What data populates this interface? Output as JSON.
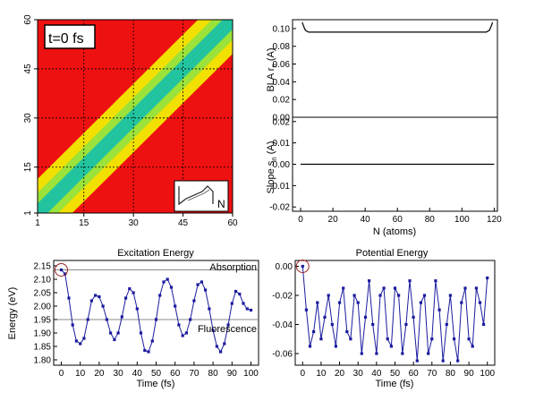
{
  "colors": {
    "heatmap_background": "#ee1111",
    "heatmap_band_outer": "#f2e000",
    "heatmap_band_mid": "#9be23a",
    "heatmap_band_core": "#22c4a0",
    "scatter_series": "#1b1b9e",
    "reference_lines": "#888888",
    "marker_circle": "#9a1f1f"
  },
  "chart_data": [
    {
      "type": "heatmap",
      "annotation": "t=0 fs",
      "inset_label": "N",
      "xlim": [
        1,
        60
      ],
      "ylim": [
        1,
        60
      ],
      "xticks": [
        "1",
        "15",
        "30",
        "45",
        "60"
      ],
      "yticks": [
        "1",
        "15",
        "30",
        "45",
        "60"
      ],
      "diagonal_band": {
        "from": [
          1,
          1
        ],
        "to": [
          60,
          60
        ],
        "half_width": 7
      },
      "grid": true
    },
    {
      "type": "line",
      "xlabel": "",
      "ylabel": "BLA r_n (A)",
      "ylabel_main": "BLA r",
      "ylabel_sub": "n",
      "ylabel_unit": " (A)",
      "xlim": [
        0,
        120
      ],
      "ylim": [
        0,
        0.11
      ],
      "yticks": [
        "0.00",
        "0.02",
        "0.04",
        "0.06",
        "0.08",
        "0.10"
      ],
      "series": [
        {
          "x": [
            1,
            2,
            3,
            5,
            10,
            30,
            60,
            90,
            110,
            115,
            117,
            118,
            119
          ],
          "y": [
            0.107,
            0.102,
            0.098,
            0.096,
            0.096,
            0.096,
            0.096,
            0.096,
            0.096,
            0.096,
            0.098,
            0.102,
            0.107
          ]
        }
      ]
    },
    {
      "type": "line",
      "xlabel": "N (atoms)",
      "ylabel": "Slope s_n (A)",
      "ylabel_main": "Slope s",
      "ylabel_sub": "n",
      "ylabel_unit": " (A)",
      "xlim": [
        -5,
        122
      ],
      "ylim": [
        -0.022,
        0.022
      ],
      "xticks": [
        "0",
        "20",
        "40",
        "60",
        "80",
        "100",
        "120"
      ],
      "yticks": [
        "0.02",
        "0.01",
        "0.00",
        "-0.01",
        "-0.02"
      ],
      "series": [
        {
          "x": [
            0,
            120
          ],
          "y": [
            0,
            0
          ]
        }
      ]
    },
    {
      "type": "scatter",
      "title": "Excitation Energy",
      "xlabel": "Time (fs)",
      "ylabel": "Energy (eV)",
      "xlim": [
        -4,
        104
      ],
      "ylim": [
        1.78,
        2.17
      ],
      "xticks": [
        "0",
        "10",
        "20",
        "30",
        "40",
        "50",
        "60",
        "70",
        "80",
        "90",
        "100"
      ],
      "yticks": [
        "2.15",
        "2.10",
        "2.05",
        "2.00",
        "1.95",
        "1.90",
        "1.85",
        "1.80"
      ],
      "reference_lines": [
        {
          "label": "Absorption",
          "y": 2.135
        },
        {
          "label": "Fluorescence",
          "y": 1.95
        }
      ],
      "circle_marker": {
        "x": 0,
        "y": 2.135
      },
      "series": [
        {
          "x": [
            0,
            2,
            4,
            6,
            8,
            10,
            12,
            14,
            16,
            18,
            20,
            22,
            24,
            26,
            28,
            30,
            32,
            34,
            36,
            38,
            40,
            42,
            44,
            46,
            48,
            50,
            52,
            54,
            56,
            58,
            60,
            62,
            64,
            66,
            68,
            70,
            72,
            74,
            76,
            78,
            80,
            82,
            84,
            86,
            88,
            90,
            92,
            94,
            96,
            98,
            100
          ],
          "y": [
            2.135,
            2.12,
            2.03,
            1.93,
            1.87,
            1.86,
            1.88,
            1.95,
            2.02,
            2.04,
            2.035,
            2.0,
            1.95,
            1.9,
            1.875,
            1.9,
            1.96,
            2.03,
            2.065,
            2.05,
            1.99,
            1.9,
            1.835,
            1.83,
            1.87,
            1.95,
            2.04,
            2.09,
            2.1,
            2.07,
            2.0,
            1.93,
            1.89,
            1.9,
            1.95,
            2.02,
            2.08,
            2.09,
            2.06,
            1.99,
            1.91,
            1.85,
            1.83,
            1.86,
            1.93,
            2.01,
            2.055,
            2.045,
            2.01,
            1.99,
            1.985
          ]
        }
      ]
    },
    {
      "type": "scatter",
      "title": "Potential Energy",
      "xlabel": "Time (fs)",
      "ylabel": "",
      "xlim": [
        -4,
        104
      ],
      "ylim": [
        -0.068,
        0.004
      ],
      "xticks": [
        "0",
        "10",
        "20",
        "30",
        "40",
        "50",
        "60",
        "70",
        "80",
        "90",
        "100"
      ],
      "yticks": [
        "0.00",
        "-0.02",
        "-0.04",
        "-0.06"
      ],
      "circle_marker": {
        "x": 0,
        "y": 0.0
      },
      "series": [
        {
          "x": [
            0,
            2,
            4,
            6,
            8,
            10,
            12,
            14,
            16,
            18,
            20,
            22,
            24,
            26,
            28,
            30,
            32,
            34,
            36,
            38,
            40,
            42,
            44,
            46,
            48,
            50,
            52,
            54,
            56,
            58,
            60,
            62,
            64,
            66,
            68,
            70,
            72,
            74,
            76,
            78,
            80,
            82,
            84,
            86,
            88,
            90,
            92,
            94,
            96,
            98,
            100
          ],
          "y": [
            0.0,
            -0.03,
            -0.055,
            -0.045,
            -0.025,
            -0.05,
            -0.035,
            -0.02,
            -0.04,
            -0.055,
            -0.025,
            -0.015,
            -0.045,
            -0.05,
            -0.02,
            -0.025,
            -0.06,
            -0.035,
            -0.01,
            -0.04,
            -0.06,
            -0.02,
            -0.015,
            -0.05,
            -0.055,
            -0.015,
            -0.02,
            -0.06,
            -0.04,
            -0.01,
            -0.035,
            -0.065,
            -0.025,
            -0.02,
            -0.06,
            -0.05,
            -0.01,
            -0.03,
            -0.065,
            -0.04,
            -0.02,
            -0.05,
            -0.065,
            -0.025,
            -0.015,
            -0.05,
            -0.055,
            -0.015,
            -0.025,
            -0.04,
            -0.008
          ]
        }
      ]
    }
  ]
}
